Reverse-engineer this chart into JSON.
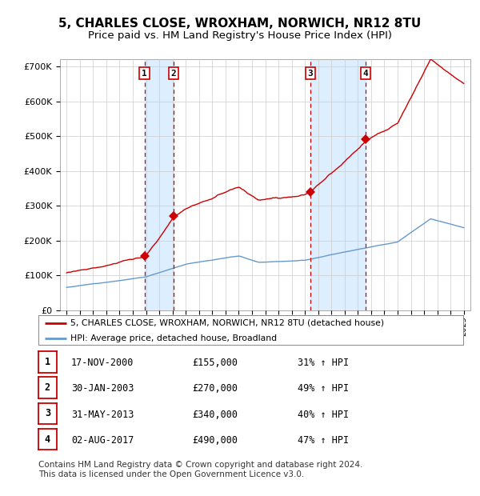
{
  "title": "5, CHARLES CLOSE, WROXHAM, NORWICH, NR12 8TU",
  "subtitle": "Price paid vs. HM Land Registry's House Price Index (HPI)",
  "title_fontsize": 11,
  "subtitle_fontsize": 9.5,
  "background_color": "#ffffff",
  "plot_bg_color": "#ffffff",
  "grid_color": "#cccccc",
  "sale_dates": [
    2000.88,
    2003.08,
    2013.42,
    2017.58
  ],
  "sale_prices": [
    155000,
    270000,
    340000,
    490000
  ],
  "sale_labels": [
    "1",
    "2",
    "3",
    "4"
  ],
  "sale_date_strings": [
    "17-NOV-2000",
    "30-JAN-2003",
    "31-MAY-2013",
    "02-AUG-2017"
  ],
  "sale_price_strings": [
    "£155,000",
    "£270,000",
    "£340,000",
    "£490,000"
  ],
  "sale_hpi_strings": [
    "31% ↑ HPI",
    "49% ↑ HPI",
    "40% ↑ HPI",
    "47% ↑ HPI"
  ],
  "hpi_color": "#6699cc",
  "price_color": "#cc0000",
  "dashed_color": "#cc0000",
  "shade_color": "#ddeeff",
  "ylim": [
    0,
    720000
  ],
  "xlim": [
    1994.5,
    2025.5
  ],
  "yticks": [
    0,
    100000,
    200000,
    300000,
    400000,
    500000,
    600000,
    700000
  ],
  "ytick_labels": [
    "£0",
    "£100K",
    "£200K",
    "£300K",
    "£400K",
    "£500K",
    "£600K",
    "£700K"
  ],
  "legend_label_price": "5, CHARLES CLOSE, WROXHAM, NORWICH, NR12 8TU (detached house)",
  "legend_label_hpi": "HPI: Average price, detached house, Broadland",
  "footer": "Contains HM Land Registry data © Crown copyright and database right 2024.\nThis data is licensed under the Open Government Licence v3.0.",
  "footer_fontsize": 7.5
}
